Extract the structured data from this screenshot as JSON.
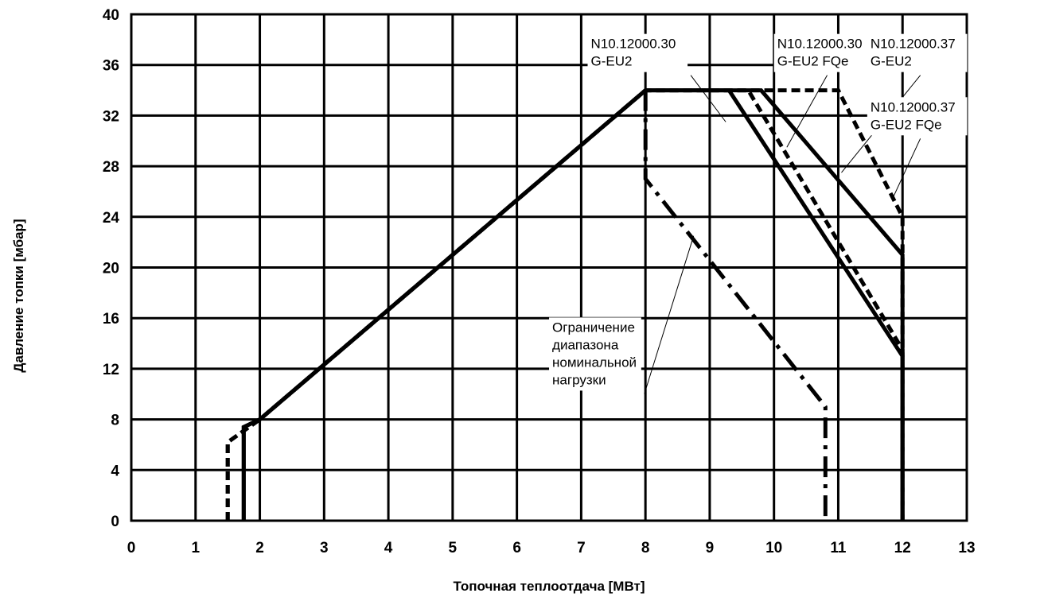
{
  "chart_data": {
    "type": "line",
    "title": "",
    "xlabel": "Топочная теплоотдача [МВт]",
    "ylabel": "Давление топки [мбар]",
    "xlim": [
      0,
      13
    ],
    "ylim": [
      0,
      40
    ],
    "x_ticks": [
      "0",
      "1",
      "2",
      "3",
      "4",
      "5",
      "6",
      "7",
      "8",
      "9",
      "10",
      "11",
      "12",
      "13"
    ],
    "y_ticks": [
      "0",
      "4",
      "8",
      "12",
      "16",
      "20",
      "24",
      "28",
      "32",
      "36",
      "40"
    ],
    "grid": true,
    "legend": "none",
    "series": [
      {
        "name": "N10.12000.30 G-EU2",
        "style": "solid",
        "x": [
          1.75,
          1.75,
          2.0,
          8.0,
          9.3,
          12.0,
          12.0
        ],
        "y": [
          0,
          7.4,
          8.0,
          34.0,
          34.0,
          13.0,
          0
        ]
      },
      {
        "name": "N10.12000.30 G-EU2 FQe",
        "style": "dashed",
        "x": [
          1.5,
          1.5,
          2.0,
          8.0,
          9.6,
          12.0,
          12.0
        ],
        "y": [
          0,
          6.2,
          8.0,
          34.0,
          34.0,
          13.5,
          0
        ]
      },
      {
        "name": "N10.12000.37 G-EU2",
        "style": "solid",
        "x": [
          1.75,
          1.75,
          2.0,
          8.0,
          9.8,
          12.0,
          12.0
        ],
        "y": [
          0,
          7.4,
          8.0,
          34.0,
          34.0,
          21.0,
          0
        ]
      },
      {
        "name": "N10.12000.37 G-EU2 FQe",
        "style": "dashed",
        "x": [
          1.5,
          1.5,
          2.0,
          8.0,
          11.0,
          12.0,
          12.0
        ],
        "y": [
          0,
          6.2,
          8.0,
          34.0,
          34.0,
          24.0,
          0
        ]
      },
      {
        "name": "Ограничение диапазона номинальной нагрузки",
        "style": "dashdot",
        "x": [
          8.0,
          8.0,
          10.8,
          10.8
        ],
        "y": [
          34.0,
          27.0,
          9.0,
          0
        ]
      }
    ],
    "annotations": [
      {
        "lines": [
          "N10.12000.30",
          "G-EU2"
        ],
        "text_anchor": [
          7.15,
          38.2
        ],
        "point": [
          9.25,
          31.5
        ]
      },
      {
        "lines": [
          "N10.12000.30",
          "G-EU2 FQe"
        ],
        "text_anchor": [
          10.05,
          38.2
        ],
        "point": [
          10.2,
          29.5
        ]
      },
      {
        "lines": [
          "N10.12000.37",
          "G-EU2"
        ],
        "text_anchor": [
          11.5,
          38.2
        ],
        "point": [
          11.05,
          27.5
        ]
      },
      {
        "lines": [
          "N10.12000.37",
          "G-EU2 FQe"
        ],
        "text_anchor": [
          11.5,
          33.2
        ],
        "point": [
          11.85,
          25.5
        ]
      },
      {
        "lines": [
          "Ограничение",
          "диапазона",
          "номинальной",
          "нагрузки"
        ],
        "text_anchor": [
          6.55,
          15.8
        ],
        "point": [
          8.75,
          22.5
        ]
      }
    ],
    "colors": {
      "line": "#000000",
      "grid": "#000000",
      "background": "#ffffff"
    }
  }
}
